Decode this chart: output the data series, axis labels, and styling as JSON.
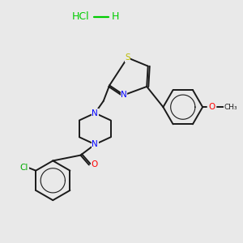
{
  "background_color": "#e9e9e9",
  "bond_color": "#1a1a1a",
  "N_color": "#0000ff",
  "O_color": "#ff0000",
  "S_color": "#bbbb00",
  "Cl_color": "#00aa00",
  "hcl_color": "#00cc00",
  "bond_width": 1.4,
  "figsize": [
    3.0,
    3.0
  ],
  "dpi": 100,
  "xlim": [
    0,
    10
  ],
  "ylim": [
    0,
    10
  ]
}
